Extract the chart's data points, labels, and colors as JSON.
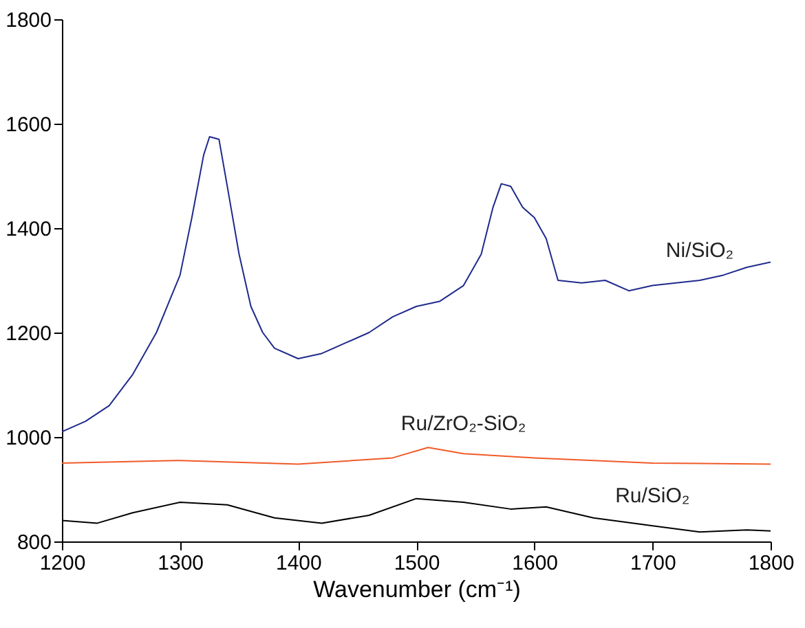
{
  "chart_data": {
    "type": "line",
    "xlabel": "Wavenumber (cm⁻¹)",
    "xlim": [
      1200,
      1800
    ],
    "xticks": [
      1200,
      1300,
      1400,
      1500,
      1600,
      1700,
      1800
    ],
    "ylim": [
      800,
      1800
    ],
    "yticks": [
      800,
      1000,
      1200,
      1400,
      1600,
      1800
    ],
    "grid": false,
    "marker": "none",
    "line_style": "solid",
    "series": [
      {
        "name": "Ni/SiO₂",
        "color": "#1f2a8c",
        "x": [
          1200,
          1220,
          1240,
          1260,
          1280,
          1300,
          1310,
          1320,
          1325,
          1333,
          1340,
          1350,
          1360,
          1370,
          1380,
          1400,
          1420,
          1440,
          1460,
          1480,
          1500,
          1520,
          1540,
          1555,
          1565,
          1572,
          1580,
          1590,
          1600,
          1610,
          1620,
          1640,
          1660,
          1680,
          1700,
          1720,
          1740,
          1760,
          1780,
          1800
        ],
        "values": [
          1010,
          1030,
          1060,
          1120,
          1200,
          1310,
          1420,
          1540,
          1575,
          1570,
          1480,
          1350,
          1250,
          1200,
          1170,
          1150,
          1160,
          1180,
          1200,
          1230,
          1250,
          1260,
          1290,
          1350,
          1440,
          1485,
          1480,
          1440,
          1420,
          1380,
          1300,
          1295,
          1300,
          1280,
          1290,
          1295,
          1300,
          1310,
          1325,
          1335
        ]
      },
      {
        "name": "Ru/ZrO₂-SiO₂",
        "color": "#f05a28",
        "x": [
          1200,
          1300,
          1400,
          1480,
          1510,
          1540,
          1600,
          1700,
          1800
        ],
        "values": [
          950,
          955,
          948,
          960,
          980,
          968,
          960,
          950,
          948
        ]
      },
      {
        "name": "Ru/SiO₂",
        "color": "#000000",
        "x": [
          1200,
          1230,
          1260,
          1300,
          1340,
          1380,
          1420,
          1460,
          1500,
          1540,
          1580,
          1610,
          1650,
          1700,
          1740,
          1780,
          1800
        ],
        "values": [
          840,
          835,
          855,
          875,
          870,
          845,
          835,
          850,
          882,
          875,
          862,
          866,
          845,
          830,
          818,
          822,
          820
        ]
      }
    ]
  }
}
